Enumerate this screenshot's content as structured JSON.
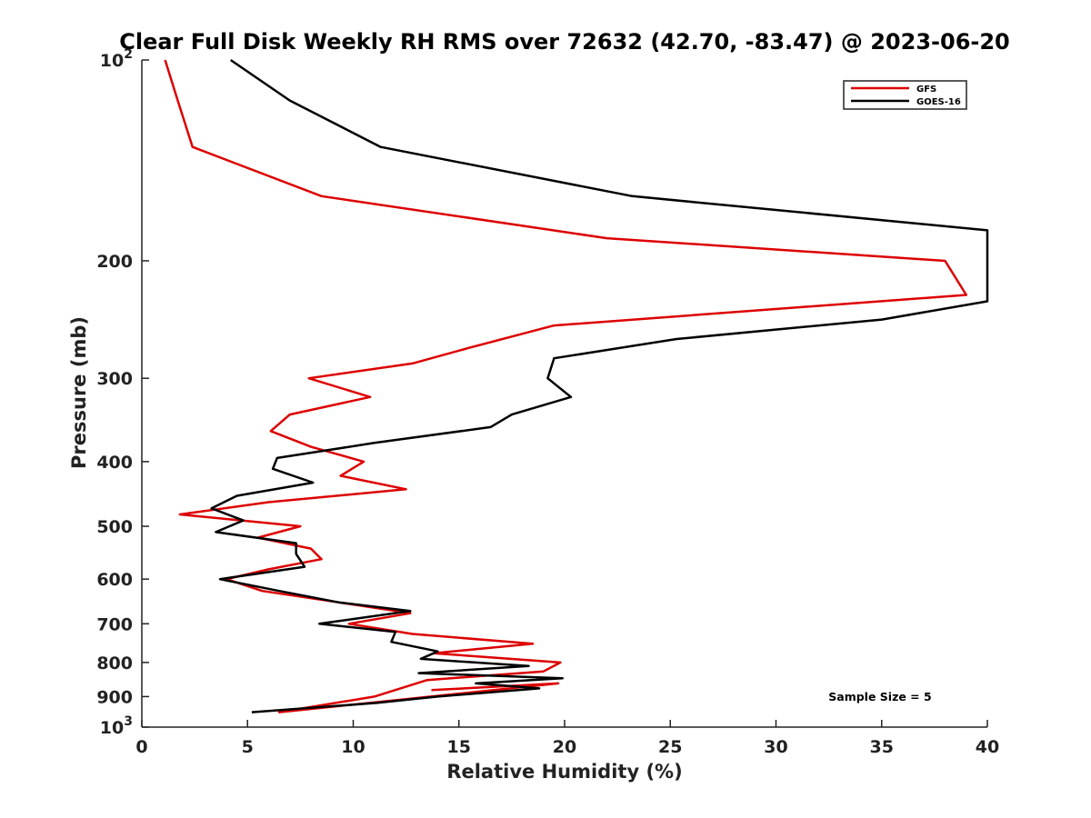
{
  "chart_data": {
    "type": "line",
    "title": "Clear Full Disk Weekly RH RMS over 72632 (42.70, -83.47) @ 2023-06-20",
    "xlabel": "Relative Humidity (%)",
    "ylabel": "Pressure (mb)",
    "xlim": [
      0,
      40
    ],
    "ylim": [
      100,
      1000
    ],
    "y_scale": "log",
    "y_reversed": true,
    "grid": false,
    "legend_position": "top-right",
    "x_ticks": [
      0,
      5,
      10,
      15,
      20,
      25,
      30,
      35,
      40
    ],
    "x_tick_labels": [
      "0",
      "5",
      "10",
      "15",
      "20",
      "25",
      "30",
      "35",
      "40"
    ],
    "y_ticks": [
      100,
      200,
      300,
      400,
      500,
      600,
      700,
      800,
      900,
      1000
    ],
    "y_tick_labels": [
      {
        "base": "10",
        "exp": "2"
      },
      {
        "base": "200",
        "exp": ""
      },
      {
        "base": "300",
        "exp": ""
      },
      {
        "base": "400",
        "exp": ""
      },
      {
        "base": "500",
        "exp": ""
      },
      {
        "base": "600",
        "exp": ""
      },
      {
        "base": "700",
        "exp": ""
      },
      {
        "base": "800",
        "exp": ""
      },
      {
        "base": "900",
        "exp": ""
      },
      {
        "base": "10",
        "exp": "3"
      }
    ],
    "annotation": "Sample Size = 5",
    "series": [
      {
        "name": "GFS",
        "color": "#dd0000",
        "points": [
          [
            1.1,
            100
          ],
          [
            1.7,
            115
          ],
          [
            2.4,
            135
          ],
          [
            8.5,
            160
          ],
          [
            22,
            185
          ],
          [
            38,
            200
          ],
          [
            39,
            225
          ],
          [
            19.5,
            250
          ],
          [
            15.5,
            270
          ],
          [
            12.8,
            285
          ],
          [
            7.9,
            300
          ],
          [
            10.8,
            320
          ],
          [
            7,
            340
          ],
          [
            6.1,
            360
          ],
          [
            8,
            380
          ],
          [
            10.5,
            400
          ],
          [
            9.4,
            420
          ],
          [
            12.5,
            440
          ],
          [
            6,
            460
          ],
          [
            1.8,
            480
          ],
          [
            7.5,
            500
          ],
          [
            5.5,
            520
          ],
          [
            8,
            540
          ],
          [
            8.5,
            560
          ],
          [
            6,
            580
          ],
          [
            4,
            600
          ],
          [
            5.7,
            625
          ],
          [
            9.3,
            650
          ],
          [
            12.7,
            675
          ],
          [
            9.8,
            700
          ],
          [
            12.8,
            725
          ],
          [
            18.5,
            750
          ],
          [
            13.8,
            775
          ],
          [
            19.8,
            800
          ],
          [
            19,
            825
          ],
          [
            13.5,
            850
          ],
          [
            11,
            900
          ],
          [
            6.5,
            950
          ],
          [
            19.7,
            860
          ],
          [
            13.7,
            880
          ]
        ]
      },
      {
        "name": "GOES-16",
        "color": "#000000",
        "points": [
          [
            4.2,
            100
          ],
          [
            7,
            115
          ],
          [
            11.3,
            135
          ],
          [
            23.2,
            160
          ],
          [
            40,
            180
          ],
          [
            40,
            230
          ],
          [
            35,
            245
          ],
          [
            25.3,
            262
          ],
          [
            19.5,
            280
          ],
          [
            19.2,
            300
          ],
          [
            20.3,
            320
          ],
          [
            17.5,
            340
          ],
          [
            16.5,
            355
          ],
          [
            11,
            375
          ],
          [
            6.4,
            395
          ],
          [
            6.2,
            410
          ],
          [
            8.1,
            430
          ],
          [
            4.5,
            450
          ],
          [
            3.3,
            470
          ],
          [
            4.8,
            490
          ],
          [
            3.5,
            510
          ],
          [
            7.3,
            530
          ],
          [
            7.3,
            550
          ],
          [
            7.7,
            575
          ],
          [
            3.7,
            600
          ],
          [
            6.5,
            625
          ],
          [
            9.3,
            650
          ],
          [
            12.7,
            670
          ],
          [
            8.4,
            700
          ],
          [
            12,
            720
          ],
          [
            11.8,
            745
          ],
          [
            14,
            770
          ],
          [
            13.2,
            790
          ],
          [
            18.3,
            810
          ],
          [
            13.1,
            830
          ],
          [
            19.9,
            845
          ],
          [
            15.8,
            860
          ],
          [
            18.8,
            875
          ],
          [
            14,
            900
          ],
          [
            11.1,
            920
          ],
          [
            5.2,
            950
          ]
        ]
      }
    ]
  }
}
